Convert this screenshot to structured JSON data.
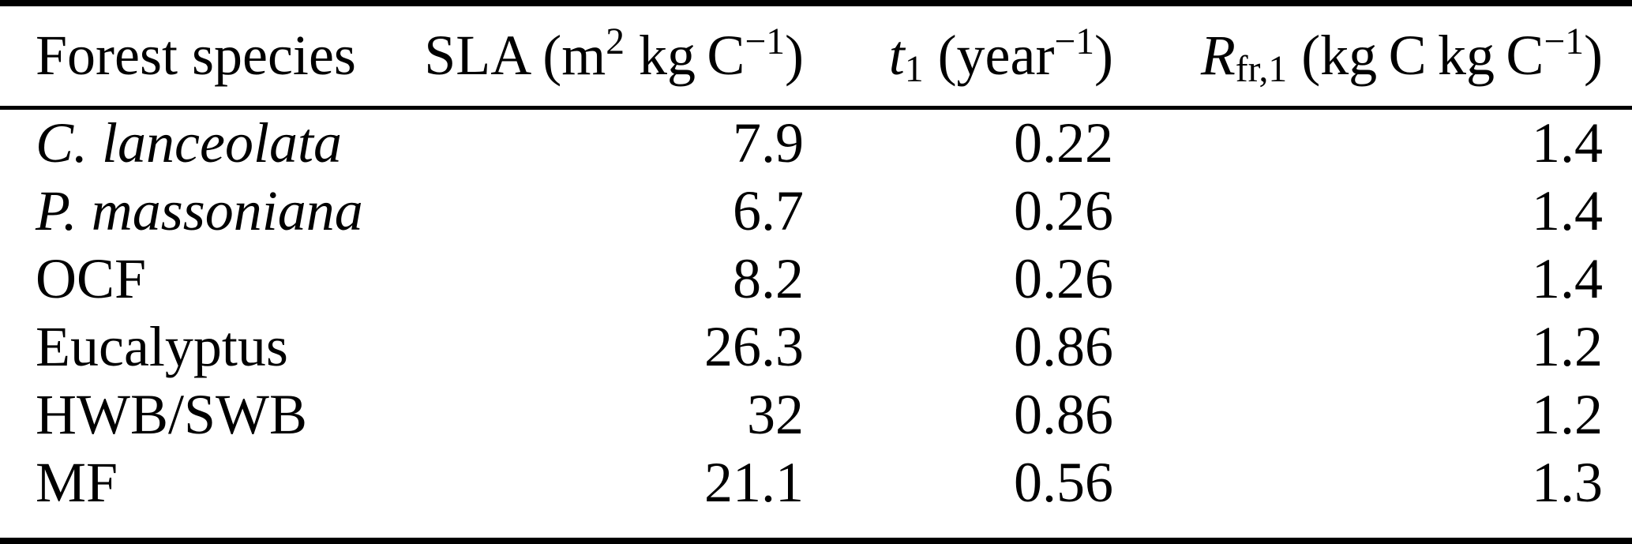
{
  "table": {
    "title_hint": "Forest species parameter table",
    "colors": {
      "text": "#000000",
      "background": "#ffffff",
      "rule": "#000000"
    },
    "header": {
      "species": "Forest species",
      "sla": {
        "pre": "SLA (m",
        "sup1": "2",
        "mid": " kg C",
        "sup2": "−1",
        "post": ")"
      },
      "tl": {
        "sym": "t",
        "sub": "1",
        "mid": " (year",
        "sup": "−1",
        "post": ")"
      },
      "rfr": {
        "sym": "R",
        "sub": "fr,1",
        "mid": " (kg C kg C",
        "sup": "−1",
        "post": ")"
      }
    },
    "rows": [
      {
        "species": "C. lanceolata",
        "sla": "7.9",
        "tl": "0.22",
        "rfr": "1.4"
      },
      {
        "species": "P. massoniana",
        "sla": "6.7",
        "tl": "0.26",
        "rfr": "1.4"
      },
      {
        "species": "OCF",
        "sla": "8.2",
        "tl": "0.26",
        "rfr": "1.4"
      },
      {
        "species": "Eucalyptus",
        "sla": "26.3",
        "tl": "0.86",
        "rfr": "1.2"
      },
      {
        "species": "HWB/SWB",
        "sla": "32",
        "tl": "0.86",
        "rfr": "1.2"
      },
      {
        "species": "MF",
        "sla": "21.1",
        "tl": "0.56",
        "rfr": "1.3"
      }
    ]
  }
}
